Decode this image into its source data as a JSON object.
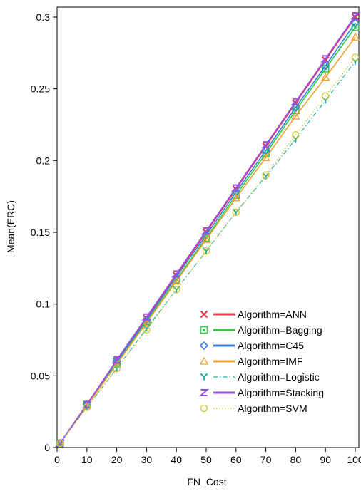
{
  "chart_data": {
    "type": "line",
    "xlabel": "FN_Cost",
    "ylabel": "Mean(ERC)",
    "xlim": [
      0,
      101
    ],
    "ylim": [
      0,
      0.302
    ],
    "x_ticks": [
      0,
      10,
      20,
      30,
      40,
      50,
      60,
      70,
      80,
      90,
      100
    ],
    "y_ticks": [
      0,
      0.05,
      0.1,
      0.15,
      0.2,
      0.25,
      0.3
    ],
    "x_tick_labels": [
      "0",
      "10",
      "20",
      "30",
      "40",
      "50",
      "60",
      "70",
      "80",
      "90",
      "100"
    ],
    "y_tick_labels": [
      "0",
      "0.05",
      "0.1",
      "0.15",
      "0.2",
      "0.25",
      "0.3"
    ],
    "grid": false,
    "legend_position": "bottom-right",
    "x": [
      1,
      10,
      20,
      30,
      40,
      50,
      60,
      70,
      80,
      90,
      100
    ],
    "series": [
      {
        "name": "Algorithm=ANN",
        "color": "#e8384f",
        "marker": "x",
        "line": "solid",
        "values": [
          0.003,
          0.03,
          0.06,
          0.09,
          0.12,
          0.15,
          0.18,
          0.21,
          0.24,
          0.27,
          0.3
        ]
      },
      {
        "name": "Algorithm=Bagging",
        "color": "#2ecc40",
        "marker": "square",
        "line": "solid",
        "values": [
          0.003,
          0.03,
          0.059,
          0.088,
          0.117,
          0.146,
          0.176,
          0.205,
          0.235,
          0.264,
          0.293
        ]
      },
      {
        "name": "Algorithm=C45",
        "color": "#3a7ee0",
        "marker": "diamond",
        "line": "solid",
        "values": [
          0.003,
          0.03,
          0.06,
          0.089,
          0.119,
          0.148,
          0.178,
          0.207,
          0.237,
          0.266,
          0.296
        ]
      },
      {
        "name": "Algorithm=IMF",
        "color": "#f0a030",
        "marker": "triangle",
        "line": "solid",
        "values": [
          0.003,
          0.029,
          0.058,
          0.087,
          0.116,
          0.145,
          0.174,
          0.202,
          0.231,
          0.258,
          0.286
        ]
      },
      {
        "name": "Algorithm=Logistic",
        "color": "#20b2aa",
        "marker": "y",
        "line": "dashdot",
        "values": [
          0.003,
          0.028,
          0.055,
          0.083,
          0.11,
          0.137,
          0.164,
          0.189,
          0.215,
          0.242,
          0.269
        ]
      },
      {
        "name": "Algorithm=Stacking",
        "color": "#9b4de8",
        "marker": "z",
        "line": "solid",
        "values": [
          0.003,
          0.03,
          0.061,
          0.091,
          0.121,
          0.151,
          0.181,
          0.211,
          0.241,
          0.271,
          0.301
        ]
      },
      {
        "name": "Algorithm=SVM",
        "color": "#d4c62a",
        "marker": "circle",
        "line": "dotted",
        "values": [
          0.003,
          0.028,
          0.055,
          0.082,
          0.11,
          0.137,
          0.164,
          0.19,
          0.218,
          0.245,
          0.272
        ]
      }
    ]
  }
}
